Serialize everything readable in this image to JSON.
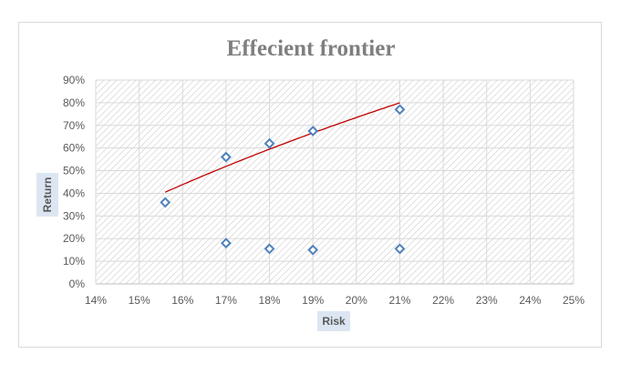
{
  "chart_data": {
    "type": "scatter",
    "title": "Effecient frontier",
    "xlabel": "Risk",
    "ylabel": "Return",
    "xlim": [
      0.14,
      0.25
    ],
    "ylim": [
      0,
      0.9
    ],
    "x_ticks": [
      "14%",
      "15%",
      "16%",
      "17%",
      "18%",
      "19%",
      "20%",
      "21%",
      "22%",
      "23%",
      "24%",
      "25%"
    ],
    "y_ticks": [
      "0%",
      "10%",
      "20%",
      "30%",
      "40%",
      "50%",
      "60%",
      "70%",
      "80%",
      "90%"
    ],
    "grid": true,
    "legend": "none",
    "series": [
      {
        "points": [
          {
            "x": 0.156,
            "y": 0.36
          },
          {
            "x": 0.17,
            "y": 0.56
          },
          {
            "x": 0.18,
            "y": 0.62
          },
          {
            "x": 0.19,
            "y": 0.675
          },
          {
            "x": 0.21,
            "y": 0.77
          },
          {
            "x": 0.17,
            "y": 0.18
          },
          {
            "x": 0.18,
            "y": 0.155
          },
          {
            "x": 0.19,
            "y": 0.15
          },
          {
            "x": 0.21,
            "y": 0.155
          }
        ],
        "marker": "diamond",
        "color": "#4f81bd"
      }
    ],
    "trendline": {
      "type": "logarithmic",
      "color": "#c00000",
      "x_range": [
        0.156,
        0.21
      ]
    }
  }
}
